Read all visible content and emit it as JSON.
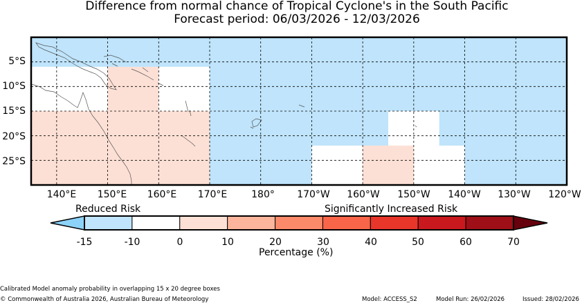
{
  "title": "Difference from normal chance of Tropical Cyclone's in the South Pacific",
  "subtitle": "Forecast period: 06/03/2026 - 12/03/2026",
  "lat_labels": [
    "5°S",
    "10°S",
    "15°S",
    "20°S",
    "25°S"
  ],
  "lon_labels": [
    "140°E",
    "150°E",
    "160°E",
    "170°E",
    "180°",
    "170°W",
    "160°W",
    "150°W",
    "140°W",
    "130°W",
    "120°W"
  ],
  "colorbar": {
    "left_label": "Reduced Risk",
    "right_label": "Significantly Increased Risk",
    "xlabel": "Percentage (%)",
    "ticks": [
      "-15",
      "-10",
      "0",
      "10",
      "20",
      "30",
      "40",
      "50",
      "60",
      "70"
    ],
    "colors": [
      "#8dd3f9",
      "#bfe4fb",
      "#ffffff",
      "#fde0d5",
      "#fbb59d",
      "#fb8a6a",
      "#f86548",
      "#e9362b",
      "#c9181e",
      "#9e0f17",
      "#67000d"
    ]
  },
  "chart_data": {
    "type": "heatmap",
    "title": "Difference from normal chance of Tropical Cyclone's in the South Pacific",
    "subtitle": "Forecast period: 06/03/2026 - 12/03/2026",
    "units": "Percentage (%)",
    "cells": [
      {
        "lon": [
          135,
          240
        ],
        "lat": [
          0,
          -30
        ],
        "value": -15
      },
      {
        "lon": [
          135,
          150
        ],
        "lat": [
          -6,
          -15
        ],
        "value": -10
      },
      {
        "lon": [
          150,
          160
        ],
        "lat": [
          -6,
          -15
        ],
        "value": 0
      },
      {
        "lon": [
          160,
          170
        ],
        "lat": [
          -6,
          -15
        ],
        "value": -10
      },
      {
        "lon": [
          135,
          150
        ],
        "lat": [
          -15,
          -22
        ],
        "value": 0
      },
      {
        "lon": [
          150,
          160
        ],
        "lat": [
          -15,
          -22
        ],
        "value": 5
      },
      {
        "lon": [
          160,
          170
        ],
        "lat": [
          -15,
          -22
        ],
        "value": 0
      },
      {
        "lon": [
          135,
          160
        ],
        "lat": [
          -22,
          -30
        ],
        "value": 5
      },
      {
        "lon": [
          160,
          170
        ],
        "lat": [
          -22,
          -30
        ],
        "value": 0
      },
      {
        "lon": [
          205,
          215
        ],
        "lat": [
          -15,
          -22
        ],
        "value": -10
      },
      {
        "lon": [
          190,
          200
        ],
        "lat": [
          -22,
          -30
        ],
        "value": -10
      },
      {
        "lon": [
          200,
          210
        ],
        "lat": [
          -22,
          -30
        ],
        "value": 0
      },
      {
        "lon": [
          210,
          220
        ],
        "lat": [
          -22,
          -30
        ],
        "value": -10
      }
    ]
  },
  "footer": {
    "note": "Calibrated Model anomaly probability in overlapping 15 x 20 degree boxes",
    "copyright": "© Commonwealth of Australia 2026, Australian Bureau of Meteorology",
    "model": "Model: ACCESS_S2",
    "run": "Model Run: 26/02/2026",
    "issued": "Issued: 28/02/2026"
  }
}
